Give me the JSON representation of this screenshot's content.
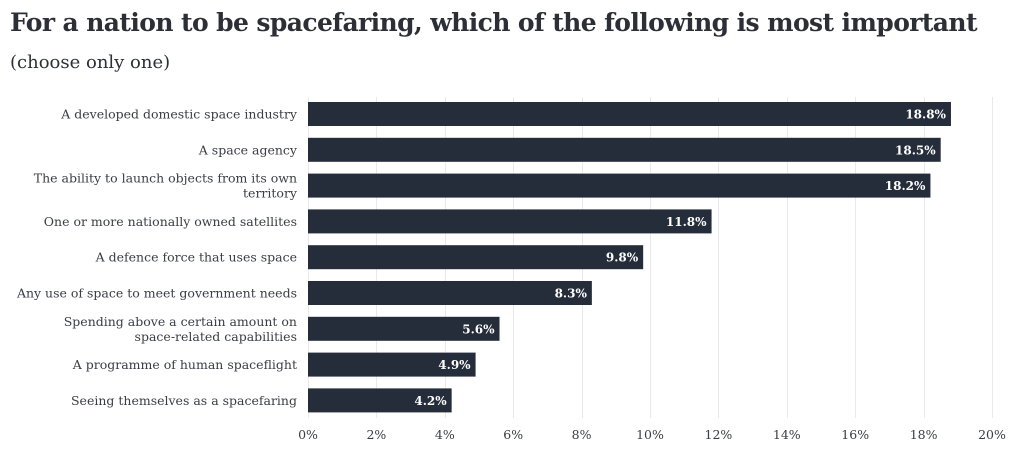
{
  "chart_data": {
    "type": "bar",
    "orientation": "horizontal",
    "title": "For a nation to be spacefaring, which of the following is most important",
    "subtitle": "(choose only one)",
    "xlabel": "",
    "ylabel": "",
    "xlim": [
      0,
      20
    ],
    "grid": true,
    "tick_values": [
      0,
      2,
      4,
      6,
      8,
      10,
      12,
      14,
      16,
      18,
      20
    ],
    "tick_labels": [
      "0%",
      "2%",
      "4%",
      "6%",
      "8%",
      "10%",
      "12%",
      "14%",
      "16%",
      "18%",
      "20%"
    ],
    "categories": [
      [
        "A developed domestic space industry"
      ],
      [
        "A space agency"
      ],
      [
        "The ability to launch objects from its own",
        "territory"
      ],
      [
        "One or more nationally owned satellites"
      ],
      [
        "A defence force that uses space"
      ],
      [
        "Any use of space to meet government needs"
      ],
      [
        "Spending above a certain amount on",
        "space-related capabilities"
      ],
      [
        "A programme of human spaceflight"
      ],
      [
        "Seeing themselves as a spacefaring"
      ]
    ],
    "values": [
      18.8,
      18.5,
      18.2,
      11.8,
      9.8,
      8.3,
      5.6,
      4.9,
      4.2
    ],
    "value_labels": [
      "18.8%",
      "18.5%",
      "18.2%",
      "11.8%",
      "9.8%",
      "8.3%",
      "5.6%",
      "4.9%",
      "4.2%"
    ],
    "bar_color": "#252d3b",
    "value_label_color": "#ffffff"
  }
}
